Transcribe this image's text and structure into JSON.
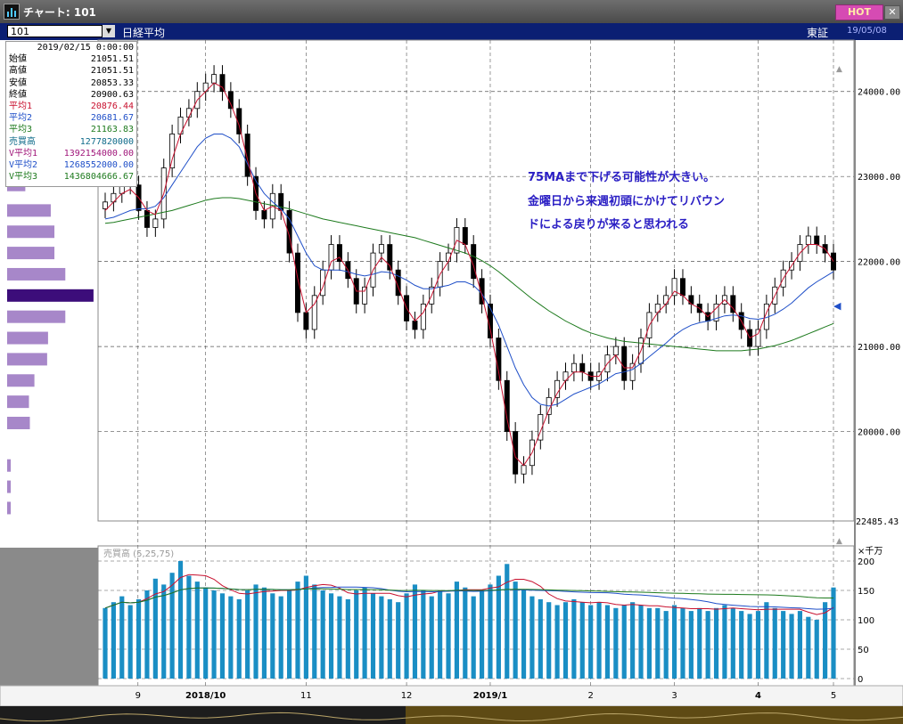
{
  "window": {
    "title": "チャート: 101",
    "hot_label": "HOT",
    "close_label": "✕"
  },
  "toolbar": {
    "code": "101",
    "name": "日経平均",
    "exchange": "東証",
    "date": "19/05/08"
  },
  "infobox": {
    "datetime": "2019/02/15 0:00:00",
    "rows": [
      {
        "label": "始値",
        "value": "21051.51",
        "color": "#000000"
      },
      {
        "label": "高値",
        "value": "21051.51",
        "color": "#000000"
      },
      {
        "label": "安値",
        "value": "20853.33",
        "color": "#000000"
      },
      {
        "label": "終値",
        "value": "20900.63",
        "color": "#000000"
      },
      {
        "label": "平均1",
        "value": "20876.44",
        "color": "#c8102e"
      },
      {
        "label": "平均2",
        "value": "20681.67",
        "color": "#1f4fc8"
      },
      {
        "label": "平均3",
        "value": "21163.83",
        "color": "#1d7a1d"
      },
      {
        "label": "売買高",
        "value": "1277820000",
        "color": "#0f6b8a"
      },
      {
        "label": "V平均1",
        "value": "1392154000.00",
        "color": "#a0167a"
      },
      {
        "label": "V平均2",
        "value": "1268552000.00",
        "color": "#1f4fc8"
      },
      {
        "label": "V平均3",
        "value": "1436804666.67",
        "color": "#1d7a1d"
      }
    ]
  },
  "annotation": {
    "lines": [
      "75MAまで下げる可能性が大きい。",
      "金曜日から来週初頭にかけてリバウン",
      "ドによる戻りが来ると思われる"
    ]
  },
  "price_axis": {
    "ticks": [
      "24000.00",
      "23000.00",
      "22000.00",
      "21000.00",
      "20000.00"
    ],
    "current_label": "22485.43"
  },
  "volume_panel": {
    "label": "売買高 (5,25,75)",
    "unit": "×千万",
    "ticks": [
      "200",
      "150",
      "100",
      "50",
      "0"
    ]
  },
  "x_axis": {
    "ticks": [
      "9",
      "2018/10",
      "11",
      "12",
      "2019/1",
      "2",
      "3",
      "4",
      "5"
    ]
  },
  "colors": {
    "up_candle": "#ffffff",
    "down_candle": "#000000",
    "ma_short": "#c8102e",
    "ma_mid": "#1f4fc8",
    "ma_long": "#1d7a1d",
    "volume_bar": "#1a8ec4",
    "volume_profile": "#a787c9",
    "volume_profile_peak": "#3c0d7a",
    "accent_title": "#0b1f73"
  },
  "chart_data": {
    "type": "candlestick",
    "title": "日経平均",
    "ylim": [
      19000,
      24500
    ],
    "yticks": [
      20000,
      21000,
      22000,
      23000,
      24000
    ],
    "x_ticks": [
      "9",
      "2018/10",
      "11",
      "12",
      "2019/1",
      "2",
      "3",
      "4",
      "5"
    ],
    "close_series": [
      22700,
      22800,
      23000,
      22900,
      22600,
      22400,
      22500,
      23100,
      23500,
      23700,
      23800,
      24000,
      24100,
      24200,
      24000,
      23800,
      23500,
      23000,
      22600,
      22500,
      22800,
      22600,
      22100,
      21400,
      21200,
      21600,
      21900,
      22200,
      22000,
      21800,
      21500,
      21700,
      22100,
      22200,
      21900,
      21600,
      21300,
      21200,
      21500,
      21700,
      22000,
      22100,
      22400,
      22200,
      21800,
      21500,
      21100,
      20600,
      20000,
      19500,
      19600,
      19900,
      20200,
      20400,
      20600,
      20700,
      20800,
      20700,
      20600,
      20700,
      20900,
      21000,
      20600,
      20800,
      21100,
      21400,
      21500,
      21600,
      21800,
      21600,
      21500,
      21400,
      21300,
      21500,
      21600,
      21400,
      21200,
      21000,
      21200,
      21500,
      21700,
      21900,
      22000,
      22200,
      22300,
      22200,
      22100,
      21900
    ],
    "ma_short": [
      22600,
      22700,
      22800,
      22850,
      22750,
      22600,
      22550,
      22800,
      23200,
      23500,
      23700,
      23900,
      24000,
      24100,
      24050,
      23850,
      23600,
      23200,
      22800,
      22600,
      22650,
      22600,
      22300,
      21800,
      21400,
      21500,
      21700,
      22000,
      22050,
      21900,
      21650,
      21650,
      21900,
      22050,
      21950,
      21700,
      21450,
      21300,
      21400,
      21600,
      21850,
      22000,
      22250,
      22200,
      21950,
      21600,
      21200,
      20700,
      20150,
      19700,
      19600,
      19750,
      20000,
      20250,
      20450,
      20600,
      20700,
      20700,
      20650,
      20650,
      20800,
      20900,
      20750,
      20750,
      20950,
      21250,
      21400,
      21500,
      21650,
      21600,
      21500,
      21450,
      21350,
      21450,
      21550,
      21450,
      21300,
      21100,
      21150,
      21400,
      21600,
      21800,
      21950,
      22100,
      22200,
      22200,
      22150,
      22000
    ],
    "ma_mid": [
      22500,
      22520,
      22560,
      22600,
      22620,
      22620,
      22650,
      22750,
      22900,
      23050,
      23200,
      23350,
      23450,
      23500,
      23500,
      23450,
      23350,
      23150,
      22950,
      22800,
      22700,
      22620,
      22500,
      22300,
      22100,
      21950,
      21900,
      21900,
      21900,
      21880,
      21850,
      21830,
      21850,
      21880,
      21870,
      21830,
      21780,
      21720,
      21680,
      21680,
      21700,
      21720,
      21760,
      21760,
      21720,
      21620,
      21450,
      21250,
      21000,
      20750,
      20550,
      20400,
      20320,
      20300,
      20320,
      20380,
      20440,
      20480,
      20520,
      20560,
      20620,
      20680,
      20700,
      20730,
      20800,
      20880,
      20960,
      21040,
      21130,
      21200,
      21250,
      21280,
      21300,
      21330,
      21360,
      21370,
      21360,
      21330,
      21320,
      21340,
      21380,
      21440,
      21510,
      21600,
      21690,
      21760,
      21820,
      21880
    ],
    "ma_long": [
      22450,
      22460,
      22480,
      22500,
      22520,
      22540,
      22560,
      22580,
      22600,
      22630,
      22660,
      22690,
      22720,
      22740,
      22750,
      22750,
      22740,
      22720,
      22700,
      22680,
      22660,
      22640,
      22620,
      22590,
      22560,
      22530,
      22500,
      22480,
      22460,
      22440,
      22420,
      22400,
      22380,
      22360,
      22340,
      22320,
      22300,
      22280,
      22250,
      22220,
      22190,
      22160,
      22130,
      22100,
      22060,
      22010,
      21950,
      21880,
      21800,
      21720,
      21640,
      21560,
      21490,
      21420,
      21360,
      21300,
      21250,
      21200,
      21160,
      21130,
      21100,
      21080,
      21060,
      21050,
      21040,
      21030,
      21020,
      21010,
      21000,
      20990,
      20980,
      20970,
      20960,
      20950,
      20950,
      20950,
      20950,
      20960,
      20970,
      20990,
      21010,
      21040,
      21070,
      21110,
      21150,
      21190,
      21230,
      21270
    ],
    "volume": [
      120,
      130,
      140,
      125,
      135,
      150,
      170,
      160,
      180,
      200,
      175,
      165,
      155,
      150,
      145,
      140,
      135,
      150,
      160,
      155,
      145,
      140,
      150,
      165,
      175,
      160,
      150,
      145,
      140,
      135,
      150,
      155,
      145,
      140,
      135,
      130,
      145,
      160,
      150,
      140,
      150,
      145,
      165,
      155,
      140,
      150,
      160,
      175,
      195,
      165,
      150,
      140,
      135,
      130,
      125,
      130,
      135,
      130,
      125,
      130,
      125,
      120,
      125,
      130,
      125,
      120,
      120,
      115,
      125,
      120,
      115,
      120,
      115,
      120,
      125,
      120,
      115,
      110,
      115,
      130,
      120,
      115,
      110,
      115,
      105,
      100,
      130,
      155
    ]
  }
}
